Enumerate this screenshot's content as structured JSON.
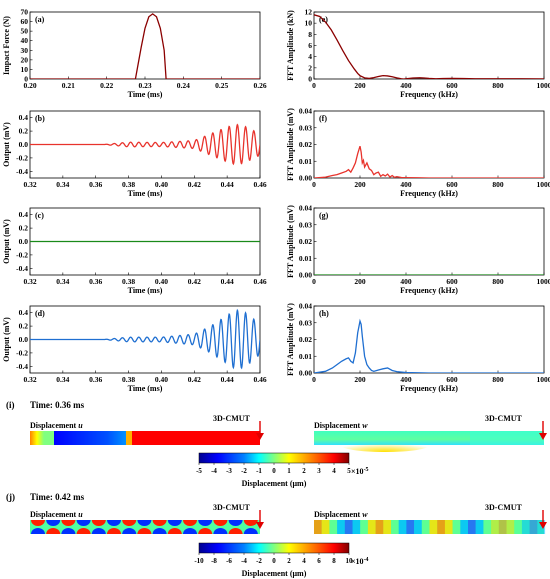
{
  "chart_data": [
    {
      "id": "a",
      "type": "line",
      "panel_label": "(a)",
      "xlabel": "Time (ms)",
      "ylabel": "Impact Force (N)",
      "xlim": [
        0.2,
        0.26
      ],
      "ylim": [
        0,
        70
      ],
      "xticks": [
        0.2,
        0.21,
        0.22,
        0.23,
        0.24,
        0.25,
        0.26
      ],
      "xtick_labels": [
        "0.20",
        "0.21",
        "0.22",
        "0.23",
        "0.24",
        "0.25",
        "0.26"
      ],
      "yticks": [
        0,
        10,
        20,
        30,
        40,
        50,
        60,
        70
      ],
      "ytick_labels": [
        "0",
        "10",
        "20",
        "30",
        "40",
        "50",
        "60",
        "70"
      ],
      "color": "#8b0000",
      "series": [
        {
          "x": [
            0.2,
            0.2275,
            0.228,
            0.229,
            0.23,
            0.231,
            0.232,
            0.233,
            0.234,
            0.235,
            0.2355,
            0.26
          ],
          "y": [
            0,
            0,
            11,
            33,
            53,
            65,
            68,
            65,
            53,
            30,
            0,
            0
          ]
        }
      ]
    },
    {
      "id": "e",
      "type": "line",
      "panel_label": "(e)",
      "xlabel": "Frequency (kHz)",
      "ylabel": "FFT Amplitude (kN)",
      "xlim": [
        0,
        1000
      ],
      "ylim": [
        0,
        12
      ],
      "xticks": [
        0,
        200,
        400,
        600,
        800,
        1000
      ],
      "xtick_labels": [
        "0",
        "200",
        "400",
        "600",
        "800",
        "1000"
      ],
      "yticks": [
        0,
        2,
        4,
        6,
        8,
        10,
        12
      ],
      "ytick_labels": [
        "0",
        "2",
        "4",
        "6",
        "8",
        "10",
        "12"
      ],
      "color": "#8b0000",
      "series": [
        {
          "x": [
            0,
            25,
            50,
            75,
            100,
            125,
            150,
            175,
            190,
            200,
            220,
            240,
            260,
            280,
            300,
            320,
            340,
            360,
            380,
            390,
            400,
            430,
            460,
            480,
            500,
            530,
            560,
            600,
            650,
            700,
            800,
            900,
            1000
          ],
          "y": [
            11.5,
            11.2,
            10.2,
            8.8,
            7.0,
            5.1,
            3.3,
            1.8,
            1.0,
            0.6,
            0.2,
            0.1,
            0.25,
            0.45,
            0.6,
            0.55,
            0.4,
            0.2,
            0.05,
            0.0,
            0.05,
            0.18,
            0.22,
            0.18,
            0.1,
            0.05,
            0.08,
            0.1,
            0.08,
            0.05,
            0.04,
            0.03,
            0.02
          ]
        }
      ]
    },
    {
      "id": "b",
      "type": "line",
      "panel_label": "(b)",
      "xlabel": "Time (ms)",
      "ylabel": "Output (mV)",
      "xlim": [
        0.32,
        0.46
      ],
      "ylim": [
        -0.5,
        0.5
      ],
      "xticks": [
        0.32,
        0.34,
        0.36,
        0.38,
        0.4,
        0.42,
        0.44,
        0.46
      ],
      "xtick_labels": [
        "0.32",
        "0.34",
        "0.36",
        "0.38",
        "0.40",
        "0.42",
        "0.44",
        "0.46"
      ],
      "yticks": [
        -0.4,
        -0.2,
        0.0,
        0.2,
        0.4
      ],
      "ytick_labels": [
        "-0.4",
        "-0.2",
        "0.0",
        "0.2",
        "0.4"
      ],
      "color": "#e8332c",
      "wave": {
        "start": 0.365,
        "frequency_khz": 200,
        "envelope_t": [
          0.365,
          0.38,
          0.4,
          0.42,
          0.43,
          0.44,
          0.445,
          0.45,
          0.455,
          0.46
        ],
        "envelope_a": [
          0.0,
          0.035,
          0.03,
          0.06,
          0.16,
          0.26,
          0.3,
          0.28,
          0.22,
          0.16
        ]
      }
    },
    {
      "id": "f",
      "type": "line",
      "panel_label": "(f)",
      "xlabel": "Frequency (kHz)",
      "ylabel": "FFT Amplitude (mV)",
      "xlim": [
        0,
        1000
      ],
      "ylim": [
        0,
        0.04
      ],
      "xticks": [
        0,
        200,
        400,
        600,
        800,
        1000
      ],
      "xtick_labels": [
        "0",
        "200",
        "400",
        "600",
        "800",
        "1000"
      ],
      "yticks": [
        0.0,
        0.01,
        0.02,
        0.03,
        0.04
      ],
      "ytick_labels": [
        "0.00",
        "0.01",
        "0.02",
        "0.03",
        "0.04"
      ],
      "color": "#e8332c",
      "series": [
        {
          "x": [
            0,
            50,
            80,
            100,
            120,
            140,
            150,
            160,
            170,
            180,
            190,
            200,
            205,
            210,
            215,
            220,
            230,
            240,
            250,
            260,
            270,
            280,
            290,
            300,
            310,
            320,
            330,
            340,
            350,
            360,
            380,
            400,
            450,
            500,
            600,
            800,
            1000
          ],
          "y": [
            0,
            0.0005,
            0.0015,
            0.002,
            0.003,
            0.004,
            0.005,
            0.0035,
            0.006,
            0.009,
            0.0145,
            0.019,
            0.0155,
            0.009,
            0.0105,
            0.0065,
            0.009,
            0.0055,
            0.0045,
            0.002,
            0.003,
            0.0035,
            0.001,
            0.002,
            0.0012,
            0.0023,
            0.0006,
            0.0015,
            0.0004,
            0.0008,
            0.0003,
            0.0002,
            0.0001,
            0,
            0,
            0,
            0
          ]
        }
      ]
    },
    {
      "id": "c",
      "type": "line",
      "panel_label": "(c)",
      "xlabel": "Time (ms)",
      "ylabel": "Output (mV)",
      "xlim": [
        0.32,
        0.46
      ],
      "ylim": [
        -0.5,
        0.5
      ],
      "xticks": [
        0.32,
        0.34,
        0.36,
        0.38,
        0.4,
        0.42,
        0.44,
        0.46
      ],
      "xtick_labels": [
        "0.32",
        "0.34",
        "0.36",
        "0.38",
        "0.40",
        "0.42",
        "0.44",
        "0.46"
      ],
      "yticks": [
        -0.4,
        -0.2,
        0.0,
        0.2,
        0.4
      ],
      "ytick_labels": [
        "-0.4",
        "-0.2",
        "0.0",
        "0.2",
        "0.4"
      ],
      "color": "#1a8a1a",
      "series": [
        {
          "x": [
            0.32,
            0.46
          ],
          "y": [
            0,
            0
          ]
        }
      ]
    },
    {
      "id": "g",
      "type": "line",
      "panel_label": "(g)",
      "xlabel": "Frequency (kHz)",
      "ylabel": "FFT Amplitude (mV)",
      "xlim": [
        0,
        1000
      ],
      "ylim": [
        0,
        0.04
      ],
      "xticks": [
        0,
        200,
        400,
        600,
        800,
        1000
      ],
      "xtick_labels": [
        "0",
        "200",
        "400",
        "600",
        "800",
        "1000"
      ],
      "yticks": [
        0.0,
        0.01,
        0.02,
        0.03,
        0.04
      ],
      "ytick_labels": [
        "0.00",
        "0.01",
        "0.02",
        "0.03",
        "0.04"
      ],
      "color": "#1a8a1a",
      "series": [
        {
          "x": [
            0,
            1000
          ],
          "y": [
            0,
            0
          ]
        }
      ]
    },
    {
      "id": "d",
      "type": "line",
      "panel_label": "(d)",
      "xlabel": "Time (ms)",
      "ylabel": "Output (mV)",
      "xlim": [
        0.32,
        0.46
      ],
      "ylim": [
        -0.5,
        0.5
      ],
      "xticks": [
        0.32,
        0.34,
        0.36,
        0.38,
        0.4,
        0.42,
        0.44,
        0.46
      ],
      "xtick_labels": [
        "0.32",
        "0.34",
        "0.36",
        "0.38",
        "0.40",
        "0.42",
        "0.44",
        "0.46"
      ],
      "yticks": [
        -0.4,
        -0.2,
        0.0,
        0.2,
        0.4
      ],
      "ytick_labels": [
        "-0.4",
        "-0.2",
        "0.0",
        "0.2",
        "0.4"
      ],
      "color": "#1f6fd1",
      "wave": {
        "start": 0.365,
        "frequency_khz": 200,
        "envelope_t": [
          0.365,
          0.38,
          0.4,
          0.42,
          0.43,
          0.44,
          0.445,
          0.45,
          0.455,
          0.46
        ],
        "envelope_a": [
          0.0,
          0.035,
          0.035,
          0.08,
          0.2,
          0.36,
          0.44,
          0.42,
          0.33,
          0.22
        ]
      }
    },
    {
      "id": "h",
      "type": "line",
      "panel_label": "(h)",
      "xlabel": "Frequency (kHz)",
      "ylabel": "FFT Amplitude (mV)",
      "xlim": [
        0,
        1000
      ],
      "ylim": [
        0,
        0.04
      ],
      "xticks": [
        0,
        200,
        400,
        600,
        800,
        1000
      ],
      "xtick_labels": [
        "0",
        "200",
        "400",
        "600",
        "800",
        "1000"
      ],
      "yticks": [
        0.0,
        0.01,
        0.02,
        0.03,
        0.04
      ],
      "ytick_labels": [
        "0.00",
        "0.01",
        "0.02",
        "0.03",
        "0.04"
      ],
      "color": "#1f6fd1",
      "series": [
        {
          "x": [
            0,
            50,
            80,
            100,
            120,
            140,
            150,
            160,
            170,
            180,
            190,
            200,
            205,
            210,
            220,
            230,
            240,
            250,
            260,
            280,
            300,
            320,
            340,
            360,
            400,
            450,
            500,
            600,
            800,
            1000
          ],
          "y": [
            0,
            0.001,
            0.003,
            0.005,
            0.007,
            0.0085,
            0.009,
            0.007,
            0.006,
            0.012,
            0.024,
            0.031,
            0.029,
            0.022,
            0.01,
            0.005,
            0.003,
            0.0015,
            0.001,
            0.0018,
            0.0025,
            0.003,
            0.0015,
            0.0008,
            0.0003,
            0.0001,
            0,
            0,
            0,
            0
          ]
        }
      ]
    }
  ],
  "contours": {
    "i": {
      "panel_label": "(i)",
      "time_label": "Time: 0.36 ms",
      "left_label": "Displacement ",
      "left_var": "u",
      "right_label": "Displacement ",
      "right_var": "w",
      "sensor_label_left": "3D-CMUT",
      "sensor_label_right": "3D-CMUT",
      "colorbar": {
        "ticks": [
          "-5",
          "-4",
          "-3",
          "-2",
          "-1",
          "0",
          "1",
          "2",
          "3",
          "4",
          "5"
        ],
        "scale": "×10",
        "exponent": "-5",
        "label": "Displacement (μm)"
      }
    },
    "j": {
      "panel_label": "(j)",
      "time_label": "Time: 0.42 ms",
      "left_label": "Displacement ",
      "left_var": "u",
      "right_label": "Displacement ",
      "right_var": "w",
      "sensor_label_left": "3D-CMUT",
      "sensor_label_right": "3D-CMUT",
      "colorbar": {
        "ticks": [
          "-10",
          "-8",
          "-6",
          "-4",
          "-2",
          "0",
          "2",
          "4",
          "6",
          "8",
          "10"
        ],
        "scale": "×10",
        "exponent": "-4",
        "label": "Displacement (μm)"
      }
    }
  },
  "colors": {
    "jet": [
      "#00008f",
      "#0000ff",
      "#0080ff",
      "#00ffff",
      "#80ff80",
      "#ffff00",
      "#ff8000",
      "#ff0000",
      "#800000"
    ],
    "sensor_arrow": "#e00000"
  }
}
